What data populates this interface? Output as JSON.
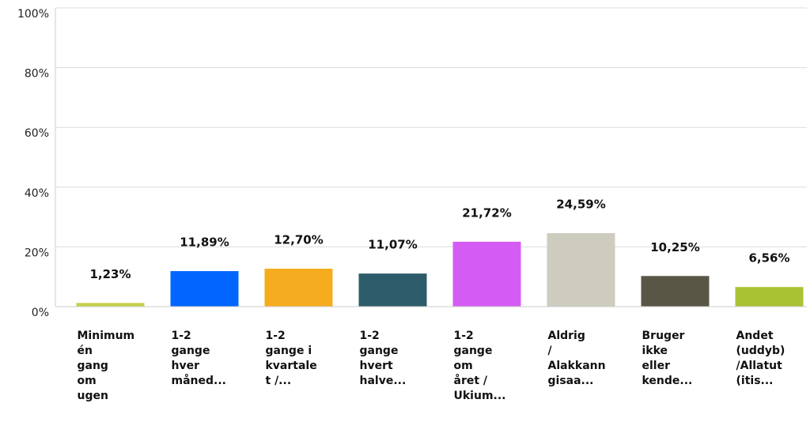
{
  "chart_data": {
    "type": "bar",
    "categories": [
      [
        "Minimum",
        "én",
        "gang",
        "om",
        "ugen"
      ],
      [
        "1-2",
        "gange",
        "hver",
        "måned..."
      ],
      [
        "1-2",
        "gange i",
        "kvartale",
        "t /..."
      ],
      [
        "1-2",
        "gange",
        "hvert",
        "halve..."
      ],
      [
        "1-2",
        "gange",
        "om",
        "året /",
        "Ukium..."
      ],
      [
        "Aldrig",
        "/",
        "Alakkann",
        "gisaa..."
      ],
      [
        "Bruger",
        "ikke",
        "eller",
        "kende..."
      ],
      [
        "Andet",
        "(uddyb)",
        "/Allatut",
        "(itis..."
      ]
    ],
    "values": [
      1.23,
      11.89,
      12.7,
      11.07,
      21.72,
      24.59,
      10.25,
      6.56
    ],
    "value_labels": [
      "1,23%",
      "11,89%",
      "12,70%",
      "11,07%",
      "21,72%",
      "24,59%",
      "10,25%",
      "6,56%"
    ],
    "colors": [
      "#c5d14b",
      "#0066ff",
      "#f5ad1f",
      "#2e5c6a",
      "#d45cf5",
      "#cdccbf",
      "#5a5646",
      "#a8c234"
    ],
    "ylim": [
      0,
      100
    ],
    "yticks": [
      {
        "value": 0,
        "label": "0%"
      },
      {
        "value": 20,
        "label": "20%"
      },
      {
        "value": 40,
        "label": "40%"
      },
      {
        "value": 60,
        "label": "60%"
      },
      {
        "value": 80,
        "label": "80%"
      },
      {
        "value": 100,
        "label": "100%"
      }
    ],
    "grid": true
  }
}
